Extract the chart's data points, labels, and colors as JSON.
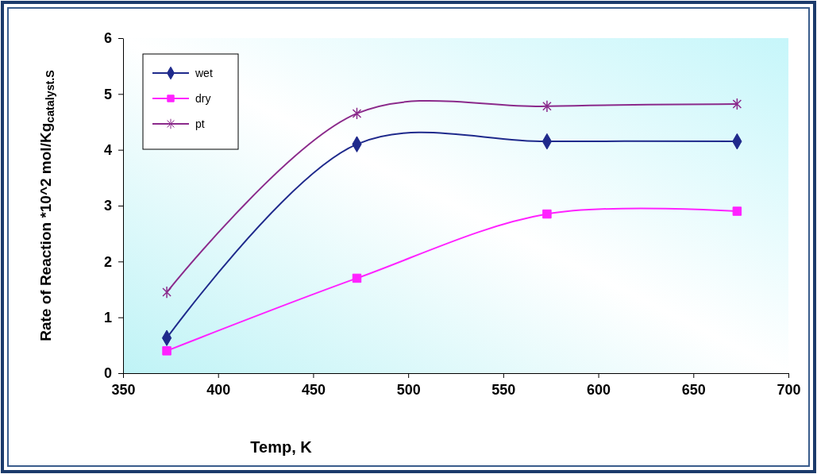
{
  "chart_data": {
    "type": "line",
    "xlabel": "Temp, K",
    "ylabel": "Rate of Reaction *10^2 mol/Kg$_{catalyst.S}$",
    "x": [
      373,
      473,
      573,
      673
    ],
    "series": [
      {
        "name": "wet",
        "color": "#1f2a8c",
        "marker": "diamond",
        "values": [
          0.63,
          4.1,
          4.15,
          4.15
        ]
      },
      {
        "name": "dry",
        "color": "#ff22ff",
        "marker": "square",
        "values": [
          0.4,
          1.7,
          2.85,
          2.9
        ]
      },
      {
        "name": "pt",
        "color": "#8b2a8b",
        "marker": "cross",
        "values": [
          1.45,
          4.65,
          4.78,
          4.82
        ]
      }
    ],
    "xlim": [
      350,
      700
    ],
    "xticks": [
      350,
      400,
      450,
      500,
      550,
      600,
      650,
      700
    ],
    "ylim": [
      0,
      6
    ],
    "yticks": [
      0,
      1,
      2,
      3,
      4,
      5,
      6
    ],
    "grid": false,
    "legend": "top left",
    "line_style": "solid"
  }
}
